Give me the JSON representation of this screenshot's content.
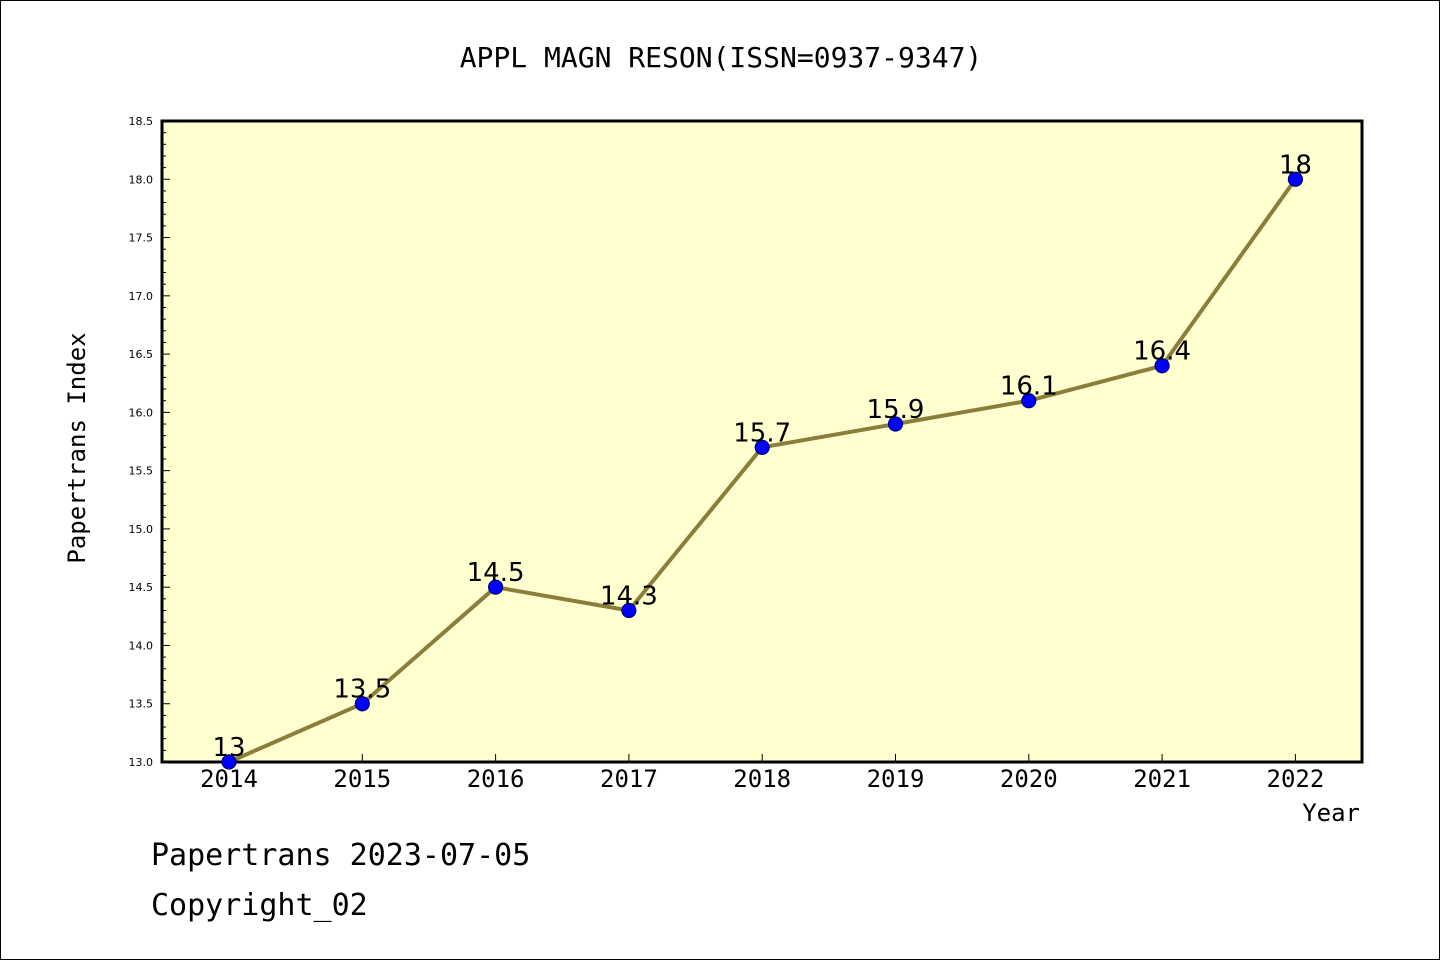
{
  "chart_data": {
    "type": "line",
    "title": "APPL MAGN RESON(ISSN=0937-9347)",
    "xlabel": "Year",
    "ylabel": "Papertrans Index",
    "categories": [
      "2014",
      "2015",
      "2016",
      "2017",
      "2018",
      "2019",
      "2020",
      "2021",
      "2022"
    ],
    "series": [
      {
        "values": [
          13,
          13.5,
          14.5,
          14.3,
          15.7,
          15.9,
          16.1,
          16.4,
          18
        ],
        "labels": [
          "13",
          "13.5",
          "14.5",
          "14.3",
          "15.7",
          "15.9",
          "16.1",
          "16.4",
          "18"
        ]
      }
    ],
    "ylim": [
      13.0,
      18.5
    ],
    "yticks": [
      "13.0",
      "13.5",
      "14.0",
      "14.5",
      "15.0",
      "15.5",
      "16.0",
      "16.5",
      "17.0",
      "17.5",
      "18.0",
      "18.5"
    ],
    "grid": false,
    "colors": {
      "plot_background": "#ffffd0",
      "line": "#8b7d3a",
      "marker_fill": "#0000ff",
      "marker_edge": "#000080"
    }
  },
  "footer": {
    "line1": "Papertrans 2023-07-05",
    "line2": "Copyright_02"
  }
}
